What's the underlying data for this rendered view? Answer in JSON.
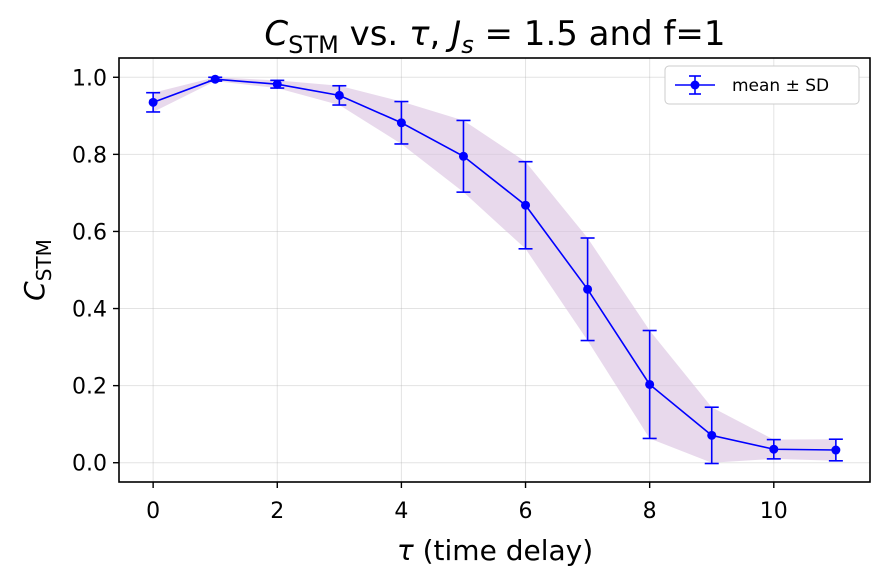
{
  "chart_data": {
    "type": "line",
    "title": "C_STM vs. τ, J_s = 1.5 and f=1",
    "title_parts": {
      "c_main": "C",
      "c_sub": "STM",
      "mid": " vs. ",
      "tau": "τ",
      "comma": ", ",
      "j_main": "J",
      "j_sub": "s",
      "tail": " = 1.5 and f=1"
    },
    "xlabel": "τ (time delay)",
    "xlabel_parts": {
      "tau": "τ",
      "rest": " (time delay)"
    },
    "ylabel": "C_STM",
    "ylabel_parts": {
      "main": "C",
      "sub": "STM"
    },
    "x": [
      0,
      1,
      2,
      3,
      4,
      5,
      6,
      7,
      8,
      9,
      10,
      11
    ],
    "series": [
      {
        "name": "mean ± SD",
        "values": [
          0.935,
          0.995,
          0.982,
          0.953,
          0.882,
          0.795,
          0.668,
          0.45,
          0.203,
          0.071,
          0.035,
          0.033
        ],
        "sd": [
          0.025,
          0.005,
          0.01,
          0.025,
          0.055,
          0.093,
          0.113,
          0.133,
          0.14,
          0.073,
          0.025,
          0.028
        ],
        "color": "#0000ff"
      }
    ],
    "band_color": "#d8bfe0",
    "xlim": [
      -0.55,
      11.55
    ],
    "ylim": [
      -0.05,
      1.05
    ],
    "xticks": [
      0,
      2,
      4,
      6,
      8,
      10
    ],
    "yticks": [
      0.0,
      0.2,
      0.4,
      0.6,
      0.8,
      1.0
    ],
    "xtick_labels": [
      "0",
      "2",
      "4",
      "6",
      "8",
      "10"
    ],
    "ytick_labels": [
      "0.0",
      "0.2",
      "0.4",
      "0.6",
      "0.8",
      "1.0"
    ],
    "grid": true,
    "legend": {
      "position": "top-right",
      "entries": [
        "mean ± SD"
      ]
    }
  }
}
